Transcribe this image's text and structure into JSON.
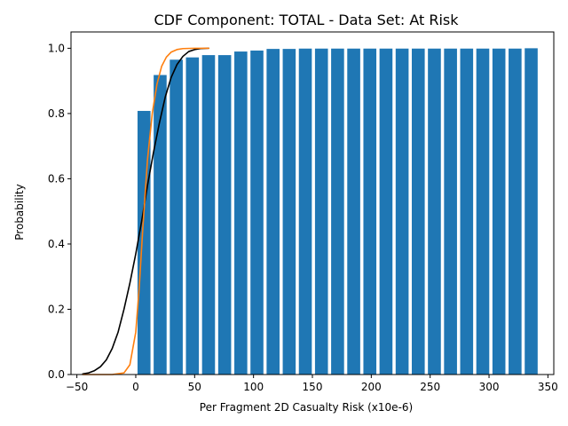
{
  "chart_data": {
    "type": "bar",
    "title": "CDF Component: TOTAL - Data Set: At Risk",
    "xlabel": "Per Fragment 2D Casualty Risk (x10e-6)",
    "ylabel": "Probability",
    "xlim": [
      -55,
      355
    ],
    "ylim": [
      0,
      1.05
    ],
    "xticks": [
      -50,
      0,
      50,
      100,
      150,
      200,
      250,
      300,
      350
    ],
    "yticks": [
      0.0,
      0.2,
      0.4,
      0.6,
      0.8,
      1.0
    ],
    "xtick_labels": [
      "−50",
      "0",
      "50",
      "100",
      "150",
      "200",
      "250",
      "300",
      "350"
    ],
    "ytick_labels": [
      "0.0",
      "0.2",
      "0.4",
      "0.6",
      "0.8",
      "1.0"
    ],
    "grid": false,
    "bar_width": 11,
    "bars": {
      "x": [
        7,
        20.7,
        34.4,
        48.1,
        61.8,
        75.5,
        89.2,
        102.9,
        116.6,
        130.3,
        144,
        157.7,
        171.4,
        185.1,
        198.8,
        212.5,
        226.2,
        239.9,
        253.6,
        267.3,
        281,
        294.7,
        308.4,
        322.1,
        335.8
      ],
      "values": [
        0.808,
        0.918,
        0.965,
        0.972,
        0.979,
        0.979,
        0.99,
        0.993,
        0.998,
        0.998,
        0.999,
        0.999,
        0.999,
        0.999,
        0.999,
        0.999,
        0.999,
        0.999,
        0.999,
        0.999,
        0.999,
        0.999,
        0.999,
        0.999,
        1.0
      ],
      "color": "#1f77b4"
    },
    "series": [
      {
        "color": "#000000",
        "x": [
          -45,
          -40,
          -35,
          -30,
          -25,
          -20,
          -15,
          -10,
          -5,
          0,
          5,
          10,
          15,
          20,
          25,
          30,
          35,
          40,
          45,
          50,
          55,
          62
        ],
        "values": [
          0.002,
          0.005,
          0.012,
          0.024,
          0.045,
          0.08,
          0.13,
          0.2,
          0.28,
          0.37,
          0.47,
          0.58,
          0.68,
          0.77,
          0.85,
          0.91,
          0.95,
          0.975,
          0.99,
          0.996,
          0.999,
          1.0
        ]
      },
      {
        "color": "#ff7f0e",
        "x": [
          -45,
          -20,
          -10,
          -5,
          0,
          3,
          6,
          10,
          14,
          18,
          22,
          26,
          30,
          35,
          40,
          50,
          62
        ],
        "values": [
          0.0,
          0.0,
          0.005,
          0.03,
          0.13,
          0.27,
          0.45,
          0.66,
          0.8,
          0.89,
          0.945,
          0.973,
          0.988,
          0.996,
          0.999,
          1.0,
          1.0
        ]
      }
    ]
  }
}
